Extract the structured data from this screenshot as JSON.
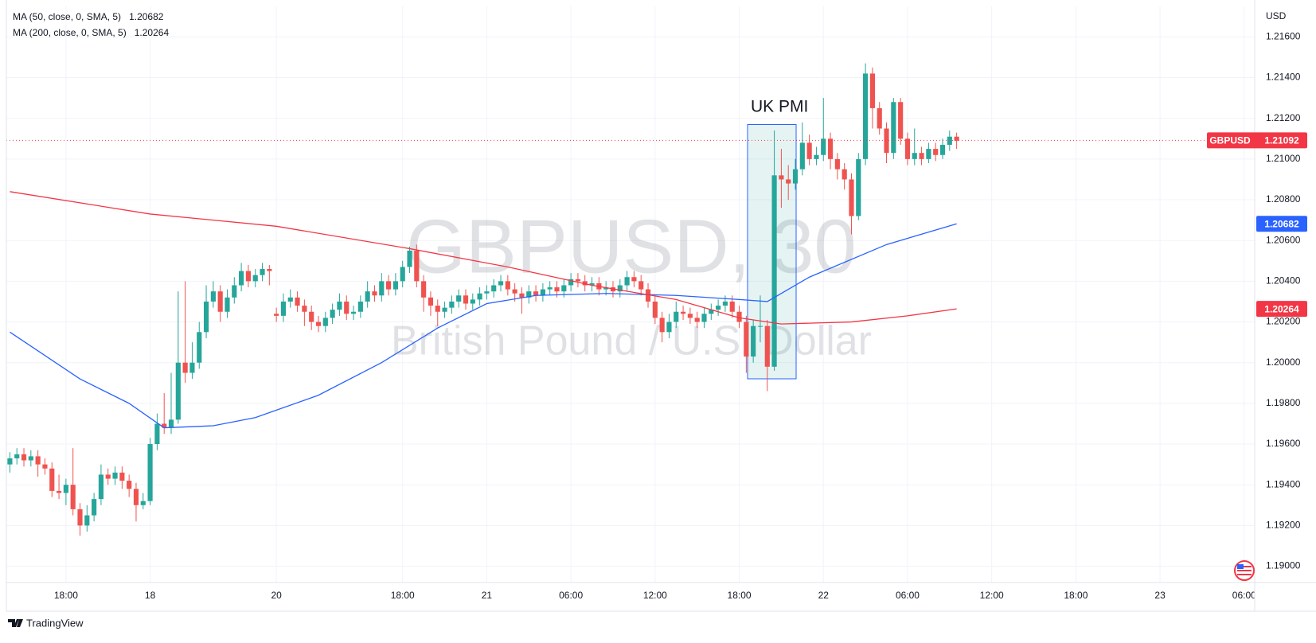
{
  "chart_data": {
    "type": "candlestick",
    "symbol_title": "GBPUSD, 30",
    "symbol_description": "British Pound / U.S. Dollar",
    "currency": "USD",
    "categories": [
      null,
      null,
      null,
      null,
      null,
      null,
      null,
      null,
      "18:00",
      null,
      null,
      null,
      null,
      null,
      null,
      null,
      null,
      null,
      null,
      null,
      "18",
      null,
      null,
      null,
      null,
      null,
      null,
      null,
      null,
      null,
      null,
      null,
      null,
      null,
      null,
      null,
      null,
      null,
      "20",
      null,
      null,
      null,
      null,
      null,
      null,
      null,
      null,
      null,
      null,
      null,
      null,
      null,
      null,
      null,
      null,
      null,
      "18:00",
      null,
      null,
      null,
      null,
      null,
      null,
      null,
      null,
      null,
      null,
      null,
      "21",
      null,
      null,
      null,
      null,
      null,
      null,
      null,
      null,
      null,
      null,
      null,
      "06:00",
      null,
      null,
      null,
      null,
      null,
      null,
      null,
      null,
      null,
      null,
      null,
      "12:00",
      null,
      null,
      null,
      null,
      null,
      null,
      null,
      null,
      null,
      null,
      null,
      "18:00",
      null,
      null,
      null,
      null,
      null,
      null,
      null,
      null,
      null,
      null,
      null,
      "22",
      null,
      null,
      null,
      null,
      null,
      null,
      null,
      null,
      null,
      null,
      null,
      "06:00",
      null,
      null,
      null,
      null,
      null,
      null,
      null,
      null,
      null,
      null,
      null,
      "12:00",
      null,
      null,
      null,
      null,
      null,
      null,
      null,
      null,
      null,
      null,
      null,
      "18:00",
      null,
      null,
      null,
      null,
      null,
      null,
      null,
      null,
      null,
      null,
      null,
      "23",
      null,
      null,
      null,
      null,
      null,
      null,
      null,
      null,
      null,
      null,
      null,
      "06:00",
      null
    ],
    "open": [
      1.195,
      1.1953,
      1.1955,
      1.1952,
      1.1954,
      1.195,
      1.1948,
      1.1937,
      1.1936,
      1.194,
      1.1928,
      1.192,
      1.1925,
      1.1933,
      1.1945,
      1.1943,
      1.1946,
      1.1942,
      1.1938,
      1.193,
      1.1932,
      1.196,
      1.197,
      1.1968,
      1.1972,
      1.2,
      1.1995,
      1.2,
      1.2015,
      1.203,
      1.2035,
      1.2025,
      1.2032,
      1.2038,
      1.2045,
      1.204,
      1.2043,
      1.2046,
      1.2024,
      1.2023,
      1.203,
      1.2032,
      1.2028,
      1.2025,
      1.202,
      1.2018,
      1.2022,
      1.2026,
      1.203,
      1.2024,
      1.2025,
      1.203,
      1.2035,
      1.2033,
      1.204,
      1.2036,
      1.204,
      1.2047,
      1.2055,
      1.204,
      1.2032,
      1.2028,
      1.2025,
      1.2027,
      1.203,
      1.2033,
      1.2029,
      1.2031,
      1.2034,
      1.2035,
      1.2038,
      1.204,
      1.2036,
      1.2034,
      1.2032,
      1.2035,
      1.2033,
      1.2036,
      1.2037,
      1.2035,
      1.2038,
      1.2041,
      1.204,
      1.2038,
      1.2039,
      1.2036,
      1.2037,
      1.2035,
      1.2038,
      1.2042,
      1.204,
      1.2036,
      1.203,
      1.2022,
      1.2015,
      1.202,
      1.2025,
      1.2024,
      1.2022,
      1.202,
      1.2024,
      1.2026,
      1.2028,
      1.203,
      1.2025,
      1.202,
      1.2003,
      1.2018,
      1.2018,
      1.1998,
      1.2092,
      1.209,
      1.2088,
      1.2095,
      1.2108,
      1.21,
      1.2102,
      1.211,
      1.21,
      1.2095,
      1.209,
      1.2072,
      1.21,
      1.2142,
      1.2125,
      1.2115,
      1.2103,
      1.2128,
      1.211,
      1.21,
      1.2103,
      1.21,
      1.2105,
      1.2102,
      1.2107,
      1.2111,
      null,
      null,
      null,
      null,
      null,
      null,
      null,
      null,
      null,
      null,
      null,
      null,
      null,
      null,
      null,
      null,
      null,
      null,
      null,
      null,
      null,
      null,
      null,
      null,
      null,
      null,
      null,
      null,
      null,
      null,
      null,
      null,
      null,
      null,
      null,
      null,
      null,
      null,
      null,
      null,
      null,
      null
    ],
    "high": [
      1.1956,
      1.1958,
      1.1958,
      1.1957,
      1.1957,
      1.1953,
      1.1951,
      1.1945,
      1.1943,
      1.1958,
      1.1931,
      1.193,
      1.1936,
      1.195,
      1.1948,
      1.1949,
      1.1949,
      1.1945,
      1.1941,
      1.1936,
      1.1963,
      1.1975,
      1.1985,
      1.1995,
      1.2035,
      1.204,
      1.201,
      1.202,
      1.2038,
      1.204,
      1.2038,
      1.2036,
      1.2042,
      1.2049,
      1.2048,
      1.2046,
      1.2049,
      1.2048,
      1.2027,
      1.2034,
      1.2036,
      1.2035,
      1.2031,
      1.2028,
      1.2023,
      1.2025,
      1.2029,
      1.2034,
      1.2033,
      1.2028,
      1.2033,
      1.204,
      1.2038,
      1.2044,
      1.2043,
      1.2044,
      1.205,
      1.2057,
      1.2058,
      1.2043,
      1.2035,
      1.2031,
      1.203,
      1.2033,
      1.2036,
      1.2036,
      1.2034,
      1.2037,
      1.2038,
      1.2041,
      1.2043,
      1.2043,
      1.2039,
      1.2037,
      1.2038,
      1.2038,
      1.2039,
      1.204,
      1.204,
      1.2041,
      1.2044,
      1.2044,
      1.2043,
      1.2042,
      1.2042,
      1.204,
      1.204,
      1.2041,
      1.2045,
      1.2045,
      1.2043,
      1.2039,
      1.2033,
      1.2025,
      1.2024,
      1.203,
      1.2028,
      1.2027,
      1.2025,
      1.2027,
      1.2029,
      1.2031,
      1.2033,
      1.2033,
      1.2028,
      1.2023,
      1.2021,
      1.2033,
      1.2021,
      1.2114,
      1.2105,
      1.2097,
      1.21,
      1.2118,
      1.2112,
      1.2106,
      1.213,
      1.2113,
      1.2103,
      1.2098,
      1.2093,
      1.2103,
      1.2147,
      1.2145,
      1.2128,
      1.2118,
      1.213,
      1.213,
      1.2113,
      1.2115,
      1.2106,
      1.2108,
      1.2108,
      1.211,
      1.2114,
      1.2113,
      null,
      null,
      null,
      null,
      null,
      null,
      null,
      null,
      null,
      null,
      null,
      null,
      null,
      null,
      null,
      null,
      null,
      null,
      null,
      null,
      null,
      null,
      null,
      null,
      null,
      null,
      null,
      null,
      null,
      null,
      null,
      null,
      null,
      null,
      null,
      null,
      null,
      null,
      null,
      null,
      null,
      null
    ],
    "low": [
      1.1946,
      1.195,
      1.1949,
      1.1949,
      1.1944,
      1.1945,
      1.1934,
      1.1933,
      1.193,
      1.1925,
      1.1915,
      1.1917,
      1.1922,
      1.193,
      1.194,
      1.194,
      1.1938,
      1.1934,
      1.1922,
      1.1928,
      1.193,
      1.1957,
      1.1965,
      1.1965,
      1.197,
      1.199,
      1.1992,
      1.1997,
      1.2012,
      1.2027,
      1.202,
      1.2022,
      1.2029,
      1.2035,
      1.2037,
      1.2037,
      1.204,
      1.2038,
      1.202,
      1.202,
      1.2027,
      1.2025,
      1.2018,
      1.2016,
      1.2015,
      1.2015,
      1.2019,
      1.2023,
      1.2021,
      1.2021,
      1.2022,
      1.2027,
      1.203,
      1.203,
      1.2033,
      1.2033,
      1.2037,
      1.2044,
      1.2037,
      1.2025,
      1.2023,
      1.2018,
      1.2022,
      1.2024,
      1.2027,
      1.2026,
      1.2026,
      1.2028,
      1.2031,
      1.2032,
      1.2035,
      1.2033,
      1.203,
      1.2024,
      1.2029,
      1.203,
      1.203,
      1.2033,
      1.2032,
      1.2032,
      1.2035,
      1.2037,
      1.2035,
      1.2035,
      1.2033,
      1.2033,
      1.2032,
      1.2032,
      1.2035,
      1.2037,
      1.2033,
      1.2027,
      1.2019,
      1.201,
      1.2012,
      1.2017,
      1.2021,
      1.2019,
      1.2017,
      1.2017,
      1.2021,
      1.2023,
      1.2025,
      1.2022,
      1.2017,
      1.1995,
      1.2,
      1.201,
      1.1986,
      1.1996,
      1.2076,
      1.208,
      1.2085,
      1.2092,
      1.2097,
      1.2097,
      1.2099,
      1.2095,
      1.209,
      1.2085,
      1.2063,
      1.207,
      1.2097,
      1.2115,
      1.2112,
      1.2098,
      1.21,
      1.2107,
      1.2097,
      1.2097,
      1.2097,
      1.2098,
      1.2099,
      1.21,
      1.2104,
      1.2105,
      null,
      null,
      null,
      null,
      null,
      null,
      null,
      null,
      null,
      null,
      null,
      null,
      null,
      null,
      null,
      null,
      null,
      null,
      null,
      null,
      null,
      null,
      null,
      null,
      null,
      null,
      null,
      null,
      null,
      null,
      null,
      null,
      null,
      null,
      null,
      null,
      null,
      null,
      null,
      null,
      null,
      null
    ],
    "close": [
      1.1953,
      1.1955,
      1.1952,
      1.1954,
      1.195,
      1.1948,
      1.1937,
      1.1936,
      1.194,
      1.1928,
      1.192,
      1.1925,
      1.1933,
      1.1945,
      1.1943,
      1.1946,
      1.1942,
      1.1938,
      1.193,
      1.1932,
      1.196,
      1.197,
      1.1968,
      1.1972,
      1.2,
      1.1995,
      1.2,
      1.2015,
      1.203,
      1.2035,
      1.2025,
      1.2032,
      1.2038,
      1.2045,
      1.204,
      1.2043,
      1.2046,
      1.2045,
      1.2023,
      1.203,
      1.2032,
      1.2028,
      1.2025,
      1.202,
      1.2018,
      1.2022,
      1.2026,
      1.203,
      1.2024,
      1.2025,
      1.203,
      1.2035,
      1.2033,
      1.204,
      1.2036,
      1.204,
      1.2047,
      1.2055,
      1.204,
      1.2032,
      1.2028,
      1.2025,
      1.2027,
      1.203,
      1.2033,
      1.2029,
      1.2031,
      1.2034,
      1.2035,
      1.2038,
      1.204,
      1.2036,
      1.2034,
      1.2032,
      1.2035,
      1.2033,
      1.2036,
      1.2037,
      1.2035,
      1.2038,
      1.2041,
      1.204,
      1.2038,
      1.2039,
      1.2036,
      1.2037,
      1.2035,
      1.2038,
      1.2042,
      1.204,
      1.2036,
      1.203,
      1.2022,
      1.2015,
      1.202,
      1.2025,
      1.2024,
      1.2022,
      1.202,
      1.2024,
      1.2026,
      1.2028,
      1.203,
      1.2025,
      1.202,
      1.2003,
      1.2018,
      1.2018,
      1.1998,
      1.2092,
      1.209,
      1.2088,
      1.2095,
      1.2108,
      1.21,
      1.2102,
      1.211,
      1.21,
      1.2095,
      1.209,
      1.2072,
      1.21,
      1.2142,
      1.2125,
      1.2115,
      1.2103,
      1.2128,
      1.211,
      1.21,
      1.2103,
      1.21,
      1.2105,
      1.2102,
      1.2107,
      1.2111,
      1.2109,
      null,
      null,
      null,
      null,
      null,
      null,
      null,
      null,
      null,
      null,
      null,
      null,
      null,
      null,
      null,
      null,
      null,
      null,
      null,
      null,
      null,
      null,
      null,
      null,
      null,
      null,
      null,
      null,
      null,
      null,
      null,
      null,
      null,
      null,
      null,
      null,
      null,
      null,
      null,
      null,
      null,
      null
    ],
    "up_color": "#26a69a",
    "down_color": "#ef5350",
    "series": [
      {
        "name": "MA (50, close, 0, SMA, 5)",
        "color": "#2962ff",
        "last_value": 1.20682,
        "x": [
          0,
          10,
          17,
          22,
          29,
          35,
          44,
          53,
          61,
          68,
          75,
          85,
          95,
          104,
          108,
          114,
          125,
          135
        ],
        "values": [
          1.2015,
          1.1992,
          1.198,
          1.1968,
          1.1969,
          1.1973,
          1.1984,
          1.2,
          1.2017,
          1.2029,
          1.2033,
          1.2034,
          1.2033,
          1.2031,
          1.203,
          1.2042,
          1.2058,
          1.20682
        ]
      },
      {
        "name": "MA (200, close, 0, SMA, 5)",
        "color": "#f23645",
        "last_value": 1.20264,
        "x": [
          0,
          20,
          38,
          57,
          71,
          83,
          95,
          104,
          110,
          120,
          128,
          135
        ],
        "values": [
          1.2084,
          1.2073,
          1.2067,
          1.2056,
          1.2047,
          1.2038,
          1.2031,
          1.2022,
          1.2019,
          1.202,
          1.2023,
          1.20264
        ]
      }
    ],
    "last_price": {
      "name": "GBPUSD",
      "value": 1.21092,
      "color": "#f23645"
    },
    "annotation": {
      "text": "UK PMI"
    },
    "ylim": [
      1.1892,
      1.2175
    ],
    "yticks": [
      {
        "value": 1.19,
        "label": "1.19000"
      },
      {
        "value": 1.192,
        "label": "1.19200"
      },
      {
        "value": 1.194,
        "label": "1.19400"
      },
      {
        "value": 1.196,
        "label": "1.19600"
      },
      {
        "value": 1.198,
        "label": "1.19800"
      },
      {
        "value": 1.2,
        "label": "1.20000"
      },
      {
        "value": 1.202,
        "label": "1.20200"
      },
      {
        "value": 1.204,
        "label": "1.20400"
      },
      {
        "value": 1.206,
        "label": "1.20600"
      },
      {
        "value": 1.208,
        "label": "1.20800"
      },
      {
        "value": 1.21,
        "label": "1.21000"
      },
      {
        "value": 1.212,
        "label": "1.21200"
      },
      {
        "value": 1.214,
        "label": "1.21400"
      },
      {
        "value": 1.216,
        "label": "1.21600"
      }
    ],
    "grid": true
  },
  "footer": {
    "brand": "TradingView"
  }
}
